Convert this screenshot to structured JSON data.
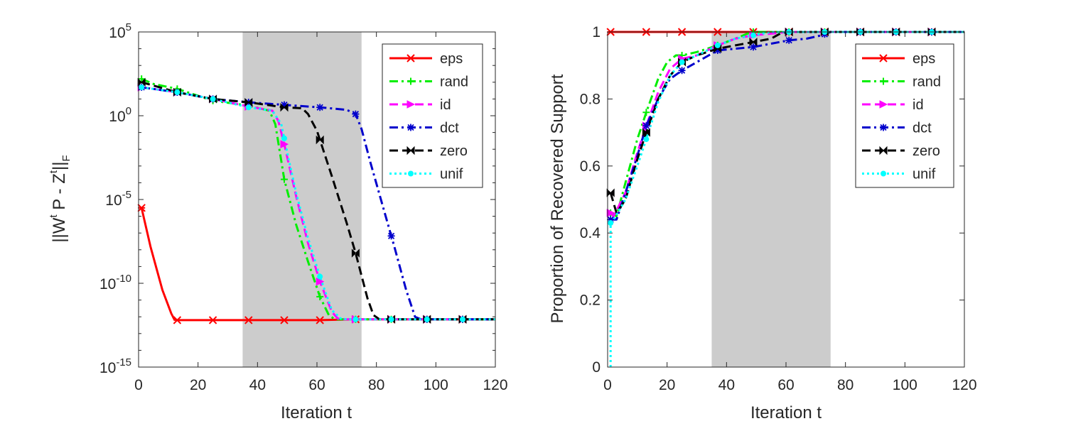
{
  "chart_data": [
    {
      "type": "line",
      "title": "",
      "xlabel": "Iteration t",
      "ylabel": "||W^t P - Z^t||_F",
      "ylabel_parts": {
        "a": "||W",
        "sup1": "t",
        "b": " P - Z",
        "sup2": "t",
        "c": "||",
        "sub": "F"
      },
      "yscale": "log",
      "xlim": [
        0,
        120
      ],
      "ylim_exp": [
        -15,
        5
      ],
      "xticks": [
        0,
        20,
        40,
        60,
        80,
        100,
        120
      ],
      "xtick_labels": [
        "0",
        "20",
        "40",
        "60",
        "80",
        "100",
        "120"
      ],
      "yticks_exp": [
        -15,
        -10,
        -5,
        0,
        5
      ],
      "ytick_labels": [
        {
          "base": "10",
          "exp": "-15"
        },
        {
          "base": "10",
          "exp": "-10"
        },
        {
          "base": "10",
          "exp": "-5"
        },
        {
          "base": "10",
          "exp": "0"
        },
        {
          "base": "10",
          "exp": "5"
        }
      ],
      "shaded_region": [
        35,
        75
      ],
      "legend_location": "top-right",
      "series": [
        {
          "name": "eps",
          "color": "#ff0000",
          "dash": "solid",
          "marker": "x",
          "x": [
            1,
            4,
            8,
            11,
            12,
            13,
            25,
            37,
            49,
            61,
            73,
            85,
            97,
            109,
            120
          ],
          "log10y": [
            -5.5,
            -7.8,
            -10.4,
            -11.8,
            -12.15,
            -12.2,
            -12.2,
            -12.2,
            -12.2,
            -12.2,
            -12.15,
            -12.15,
            -12.15,
            -12.15,
            -12.15
          ],
          "marker_every": 12
        },
        {
          "name": "rand",
          "color": "#00ee00",
          "dash": "dashdot",
          "marker": "+",
          "x": [
            1,
            5,
            13,
            25,
            37,
            44,
            46,
            49,
            53,
            57,
            61,
            64,
            66,
            68,
            73,
            85,
            97,
            109,
            120
          ],
          "log10y": [
            2.2,
            1.9,
            1.6,
            0.9,
            0.6,
            0.3,
            -0.5,
            -3.8,
            -6.5,
            -8.7,
            -10.8,
            -11.9,
            -12.15,
            -12.15,
            -12.15,
            -12.15,
            -12.15,
            -12.15,
            -12.15
          ],
          "marker_every": 12
        },
        {
          "name": "id",
          "color": "#ff00ff",
          "dash": "dashed",
          "marker": "tri-right",
          "x": [
            1,
            13,
            25,
            37,
            45,
            47,
            49,
            53,
            57,
            61,
            65,
            67,
            69,
            73,
            85,
            97,
            109,
            120
          ],
          "log10y": [
            1.7,
            1.4,
            1.0,
            0.55,
            0.3,
            -0.3,
            -1.7,
            -4.8,
            -7.6,
            -9.9,
            -11.7,
            -12.1,
            -12.15,
            -12.15,
            -12.15,
            -12.15,
            -12.15,
            -12.15
          ],
          "marker_every": 12
        },
        {
          "name": "dct",
          "color": "#0000cc",
          "dash": "dashdot",
          "marker": "*",
          "x": [
            1,
            13,
            25,
            37,
            49,
            61,
            70,
            73,
            75,
            78,
            82,
            86,
            90,
            93,
            95,
            97,
            109,
            120
          ],
          "log10y": [
            1.7,
            1.4,
            1.0,
            0.8,
            0.65,
            0.5,
            0.35,
            0.1,
            -0.8,
            -2.8,
            -5.3,
            -7.8,
            -10.4,
            -12.0,
            -12.15,
            -12.15,
            -12.15,
            -12.15
          ],
          "marker_every": 12
        },
        {
          "name": "zero",
          "color": "#000000",
          "dash": "dashed",
          "marker": "bowtie",
          "x": [
            1,
            13,
            25,
            37,
            49,
            55,
            57,
            60,
            65,
            70,
            73,
            77,
            79,
            81,
            85,
            97,
            109,
            120
          ],
          "log10y": [
            2.0,
            1.4,
            1.0,
            0.8,
            0.5,
            0.45,
            0.1,
            -0.9,
            -3.6,
            -6.4,
            -8.2,
            -10.9,
            -11.9,
            -12.15,
            -12.15,
            -12.15,
            -12.15,
            -12.15
          ],
          "marker_every": 12
        },
        {
          "name": "unif",
          "color": "#00ffff",
          "dash": "dotted",
          "marker": "o",
          "x": [
            1,
            13,
            25,
            37,
            45,
            48,
            50,
            53,
            57,
            61,
            65,
            68,
            70,
            73,
            85,
            97,
            109,
            120
          ],
          "log10y": [
            1.7,
            1.4,
            1.0,
            0.5,
            0.3,
            -0.5,
            -2.2,
            -4.6,
            -7.3,
            -9.6,
            -11.6,
            -12.1,
            -12.15,
            -12.15,
            -12.15,
            -12.15,
            -12.15,
            -12.15
          ],
          "marker_every": 12
        }
      ]
    },
    {
      "type": "line",
      "title": "",
      "xlabel": "Iteration t",
      "ylabel": "Proportion of Recovered Support",
      "yscale": "linear",
      "xlim": [
        0,
        120
      ],
      "ylim": [
        0,
        1
      ],
      "xticks": [
        0,
        20,
        40,
        60,
        80,
        100,
        120
      ],
      "xtick_labels": [
        "0",
        "20",
        "40",
        "60",
        "80",
        "100",
        "120"
      ],
      "yticks": [
        0,
        0.2,
        0.4,
        0.6,
        0.8,
        1
      ],
      "ytick_labels": [
        "0",
        "0.2",
        "0.4",
        "0.6",
        "0.8",
        "1"
      ],
      "shaded_region": [
        35,
        75
      ],
      "legend_location": "top-right",
      "series": [
        {
          "name": "eps",
          "color": "#ff0000",
          "dash": "solid",
          "marker": "x",
          "x": [
            1,
            13,
            25,
            37,
            49,
            61,
            73,
            85,
            97,
            109,
            120
          ],
          "y": [
            1,
            1,
            1,
            1,
            1,
            1,
            1,
            1,
            1,
            1,
            1
          ],
          "marker_every": 12
        },
        {
          "name": "rand",
          "color": "#00ee00",
          "dash": "dashdot",
          "marker": "+",
          "x": [
            1,
            3,
            6,
            10,
            13,
            17,
            20,
            23,
            25,
            30,
            37,
            43,
            47,
            49,
            55,
            61,
            73,
            85,
            97,
            109,
            120
          ],
          "y": [
            0.46,
            0.45,
            0.55,
            0.68,
            0.76,
            0.86,
            0.91,
            0.93,
            0.93,
            0.94,
            0.96,
            0.98,
            0.995,
            1,
            1,
            1,
            1,
            1,
            1,
            1,
            1
          ],
          "marker_every": 12
        },
        {
          "name": "id",
          "color": "#ff00ff",
          "dash": "dashed",
          "marker": "tri-right",
          "x": [
            1,
            2,
            6,
            10,
            13,
            17,
            21,
            25,
            30,
            37,
            43,
            49,
            55,
            61,
            73,
            85,
            97,
            109,
            120
          ],
          "y": [
            0.46,
            0.45,
            0.52,
            0.64,
            0.72,
            0.82,
            0.89,
            0.92,
            0.93,
            0.96,
            0.98,
            0.99,
            0.995,
            1,
            1,
            1,
            1,
            1,
            1
          ],
          "marker_every": 12
        },
        {
          "name": "dct",
          "color": "#0000cc",
          "dash": "dashdot",
          "marker": "*",
          "x": [
            1,
            3,
            6,
            10,
            13,
            17,
            21,
            25,
            30,
            37,
            43,
            49,
            55,
            61,
            67,
            72,
            75,
            85,
            97,
            109,
            120
          ],
          "y": [
            0.44,
            0.44,
            0.52,
            0.63,
            0.72,
            0.8,
            0.86,
            0.885,
            0.91,
            0.945,
            0.95,
            0.955,
            0.965,
            0.975,
            0.98,
            0.99,
            1,
            1,
            1,
            1,
            1
          ],
          "marker_every": 12
        },
        {
          "name": "zero",
          "color": "#000000",
          "dash": "dashed",
          "marker": "bowtie",
          "x": [
            1,
            3,
            6,
            10,
            13,
            17,
            21,
            25,
            30,
            37,
            43,
            49,
            55,
            58,
            61,
            73,
            85,
            97,
            109,
            120
          ],
          "y": [
            0.52,
            0.46,
            0.5,
            0.62,
            0.7,
            0.8,
            0.87,
            0.91,
            0.93,
            0.95,
            0.96,
            0.97,
            0.98,
            0.995,
            1,
            1,
            1,
            1,
            1,
            1
          ],
          "marker_every": 12
        },
        {
          "name": "unif",
          "color": "#00ffff",
          "dash": "dotted",
          "marker": "o",
          "x": [
            1,
            1,
            2,
            6,
            10,
            13,
            17,
            21,
            25,
            30,
            37,
            43,
            49,
            55,
            61,
            73,
            85,
            97,
            109,
            120
          ],
          "y": [
            0,
            0.43,
            0.44,
            0.5,
            0.6,
            0.68,
            0.79,
            0.87,
            0.91,
            0.93,
            0.96,
            0.98,
            0.99,
            1,
            1,
            1,
            1,
            1,
            1,
            1
          ],
          "marker_every": 12
        }
      ]
    }
  ]
}
